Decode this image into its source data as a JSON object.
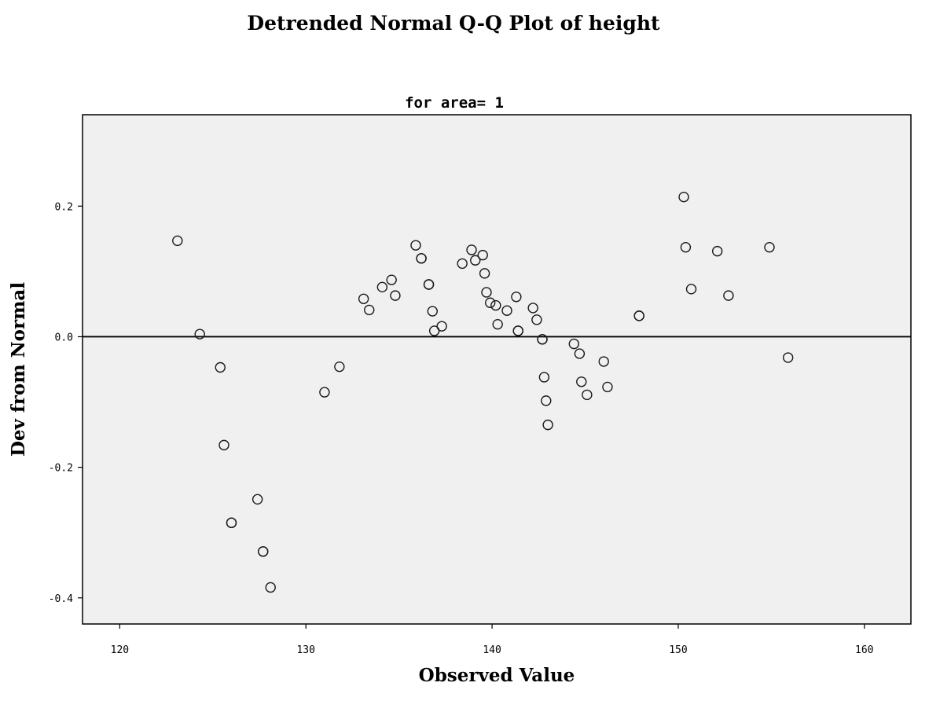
{
  "chart_data": {
    "type": "scatter",
    "title": "Detrended Normal Q-Q Plot of height",
    "subtitle": "for area= 1",
    "xlabel": "Observed Value",
    "ylabel": "Dev from Normal",
    "xlim": [
      118,
      162.5
    ],
    "ylim": [
      -0.44,
      0.34
    ],
    "xticks": [
      120,
      130,
      140,
      150,
      160
    ],
    "xtick_labels": [
      "120",
      "130",
      "140",
      "150",
      "160"
    ],
    "yticks": [
      0.2,
      0.0,
      -0.2,
      -0.4
    ],
    "ytick_labels": [
      "0.2",
      "0.0",
      "-0.2",
      "-0.4"
    ],
    "reference_line_y": 0.0,
    "grid": false,
    "colors": {
      "plot_background": "#f0f0f0",
      "point_stroke": "#1a1a1a",
      "axis": "#000000"
    },
    "points": [
      {
        "x": 123.1,
        "y": 0.147
      },
      {
        "x": 124.3,
        "y": 0.004
      },
      {
        "x": 125.4,
        "y": -0.047
      },
      {
        "x": 125.6,
        "y": -0.166
      },
      {
        "x": 126.0,
        "y": -0.285
      },
      {
        "x": 126.0,
        "y": -0.285
      },
      {
        "x": 127.4,
        "y": -0.249
      },
      {
        "x": 127.7,
        "y": -0.329
      },
      {
        "x": 127.7,
        "y": -0.329
      },
      {
        "x": 128.1,
        "y": -0.384
      },
      {
        "x": 131.0,
        "y": -0.085
      },
      {
        "x": 131.8,
        "y": -0.046
      },
      {
        "x": 133.1,
        "y": 0.058
      },
      {
        "x": 133.4,
        "y": 0.041
      },
      {
        "x": 134.1,
        "y": 0.076
      },
      {
        "x": 134.6,
        "y": 0.087
      },
      {
        "x": 134.8,
        "y": 0.063
      },
      {
        "x": 135.9,
        "y": 0.14
      },
      {
        "x": 136.2,
        "y": 0.12
      },
      {
        "x": 136.2,
        "y": 0.12
      },
      {
        "x": 136.6,
        "y": 0.08
      },
      {
        "x": 136.6,
        "y": 0.08
      },
      {
        "x": 136.8,
        "y": 0.039
      },
      {
        "x": 136.9,
        "y": 0.009
      },
      {
        "x": 137.3,
        "y": 0.016
      },
      {
        "x": 138.4,
        "y": 0.112
      },
      {
        "x": 138.9,
        "y": 0.133
      },
      {
        "x": 139.1,
        "y": 0.117
      },
      {
        "x": 139.5,
        "y": 0.125
      },
      {
        "x": 139.6,
        "y": 0.097
      },
      {
        "x": 139.7,
        "y": 0.068
      },
      {
        "x": 139.9,
        "y": 0.052
      },
      {
        "x": 140.2,
        "y": 0.048
      },
      {
        "x": 140.3,
        "y": 0.019
      },
      {
        "x": 140.8,
        "y": 0.04
      },
      {
        "x": 141.3,
        "y": 0.061
      },
      {
        "x": 141.4,
        "y": 0.009
      },
      {
        "x": 141.4,
        "y": 0.009
      },
      {
        "x": 142.2,
        "y": 0.044
      },
      {
        "x": 142.4,
        "y": 0.026
      },
      {
        "x": 142.7,
        "y": -0.004
      },
      {
        "x": 142.7,
        "y": -0.004
      },
      {
        "x": 142.8,
        "y": -0.062
      },
      {
        "x": 142.9,
        "y": -0.098
      },
      {
        "x": 143.0,
        "y": -0.135
      },
      {
        "x": 144.4,
        "y": -0.011
      },
      {
        "x": 144.7,
        "y": -0.026
      },
      {
        "x": 144.8,
        "y": -0.069
      },
      {
        "x": 145.1,
        "y": -0.089
      },
      {
        "x": 146.0,
        "y": -0.038
      },
      {
        "x": 146.2,
        "y": -0.077
      },
      {
        "x": 147.9,
        "y": 0.032
      },
      {
        "x": 147.9,
        "y": 0.032
      },
      {
        "x": 150.3,
        "y": 0.214
      },
      {
        "x": 150.4,
        "y": 0.137
      },
      {
        "x": 150.7,
        "y": 0.073
      },
      {
        "x": 152.1,
        "y": 0.131
      },
      {
        "x": 152.7,
        "y": 0.063
      },
      {
        "x": 154.9,
        "y": 0.137
      },
      {
        "x": 155.9,
        "y": -0.032
      }
    ]
  }
}
